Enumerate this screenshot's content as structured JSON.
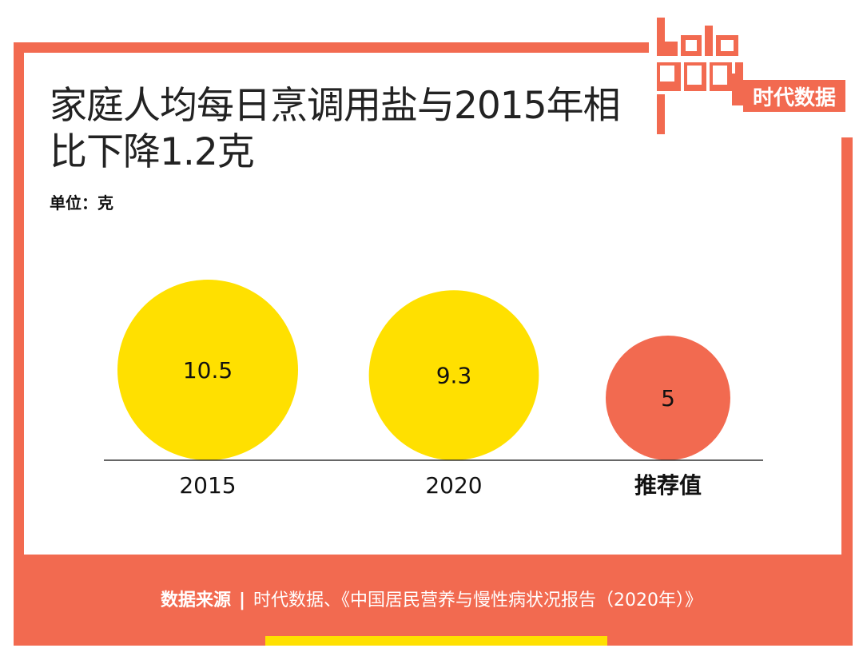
{
  "title": "家庭人均每日烹调用盐与2015年相比下降1.2克",
  "unit": "单位：克",
  "logo": {
    "text": "data good",
    "brand": "时代数据"
  },
  "source": {
    "label": "数据来源",
    "separator": "|",
    "text": "时代数据、《中国居民营养与慢性病状况报告（2020年）》"
  },
  "colors": {
    "frame": "#F26A50",
    "bubble_main": "#FFE000",
    "bubble_recommended": "#F26A50",
    "text": "#222222"
  },
  "chart_data": {
    "type": "bubble",
    "categories": [
      "2015",
      "2020",
      "推荐值"
    ],
    "values": [
      10.5,
      9.3,
      5
    ],
    "value_labels": [
      "10.5",
      "9.3",
      "5"
    ],
    "colors": [
      "#FFE000",
      "#FFE000",
      "#F26A50"
    ]
  }
}
